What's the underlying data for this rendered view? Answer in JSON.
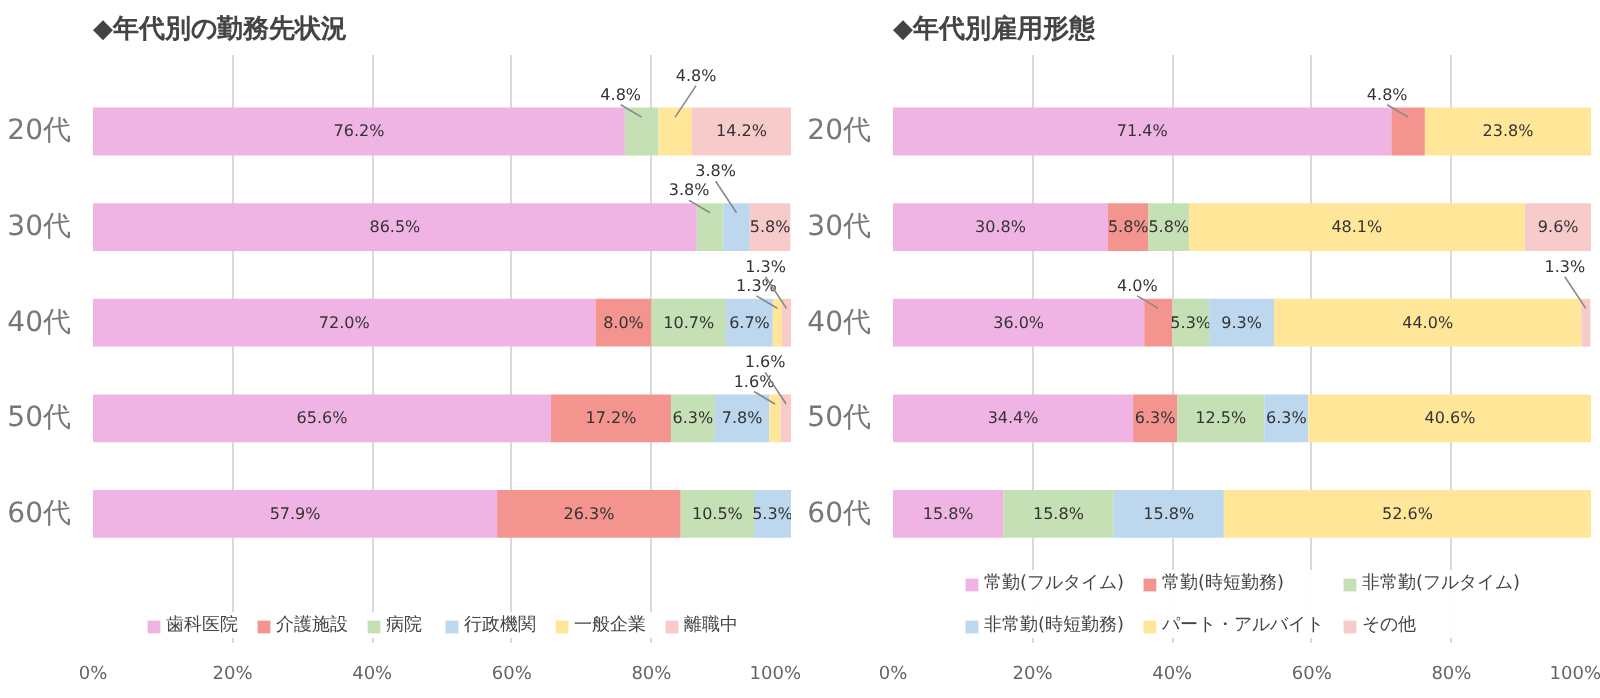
{
  "chart_data": [
    {
      "type": "bar",
      "orientation": "horizontal",
      "stacked": true,
      "title": "◆年代別の勤務先状況",
      "categories": [
        "20代",
        "30代",
        "40代",
        "50代",
        "60代"
      ],
      "xlim": [
        0,
        100
      ],
      "xticks": [
        {
          "value": 0,
          "label": "0%"
        },
        {
          "value": 20,
          "label": "20%"
        },
        {
          "value": 40,
          "label": "40%"
        },
        {
          "value": 60,
          "label": "60%"
        },
        {
          "value": 80,
          "label": "80%"
        },
        {
          "value": 100,
          "label": "100%"
        }
      ],
      "grid": "x",
      "legend": "bottom",
      "series": [
        {
          "name": "歯科医院",
          "color": "#f0b4e4",
          "values": [
            76.2,
            86.5,
            72.0,
            65.6,
            57.9
          ],
          "value_labels": [
            "76.2%",
            "86.5%",
            "72.0%",
            "65.6%",
            "57.9%"
          ]
        },
        {
          "name": "介護施設",
          "color": "#f4948f",
          "values": [
            0,
            0,
            8.0,
            17.2,
            26.3
          ],
          "value_labels": [
            null,
            null,
            "8.0%",
            "17.2%",
            "26.3%"
          ]
        },
        {
          "name": "病院",
          "color": "#c5e0b4",
          "values": [
            4.8,
            3.8,
            10.7,
            6.3,
            10.5
          ],
          "value_labels": [
            "4.8%",
            "3.8%",
            "10.7%",
            "6.3%",
            "10.5%"
          ]
        },
        {
          "name": "行政機関",
          "color": "#bdd7ee",
          "values": [
            0,
            3.8,
            6.7,
            7.8,
            5.3
          ],
          "value_labels": [
            null,
            "3.8%",
            "6.7%",
            "7.8%",
            "5.3%"
          ]
        },
        {
          "name": "一般企業",
          "color": "#ffe699",
          "values": [
            4.8,
            0,
            1.3,
            1.6,
            0
          ],
          "value_labels": [
            "4.8%",
            null,
            "1.3%",
            "1.6%",
            null
          ]
        },
        {
          "name": "離職中",
          "color": "#f8cbcb",
          "values": [
            14.2,
            5.8,
            1.3,
            1.6,
            0
          ],
          "value_labels": [
            "14.2%",
            "5.8%",
            "1.3%",
            "1.6%",
            null
          ]
        }
      ]
    },
    {
      "type": "bar",
      "orientation": "horizontal",
      "stacked": true,
      "title": "◆年代別雇用形態",
      "categories": [
        "20代",
        "30代",
        "40代",
        "50代",
        "60代"
      ],
      "xlim": [
        0,
        100
      ],
      "xticks": [
        {
          "value": 0,
          "label": "0%"
        },
        {
          "value": 20,
          "label": "20%"
        },
        {
          "value": 40,
          "label": "40%"
        },
        {
          "value": 60,
          "label": "60%"
        },
        {
          "value": 80,
          "label": "80%"
        },
        {
          "value": 100,
          "label": "100%"
        }
      ],
      "grid": "x",
      "legend": "bottom",
      "series": [
        {
          "name": "常勤(フルタイム)",
          "color": "#f0b4e4",
          "values": [
            71.4,
            30.8,
            36.0,
            34.4,
            15.8
          ],
          "value_labels": [
            "71.4%",
            "30.8%",
            "36.0%",
            "34.4%",
            "15.8%"
          ]
        },
        {
          "name": "常勤(時短勤務)",
          "color": "#f4948f",
          "values": [
            4.8,
            5.8,
            4.0,
            6.3,
            0
          ],
          "value_labels": [
            "4.8%",
            "5.8%",
            "4.0%",
            "6.3%",
            null
          ]
        },
        {
          "name": "非常勤(フルタイム)",
          "color": "#c5e0b4",
          "values": [
            0,
            5.8,
            5.3,
            12.5,
            15.8
          ],
          "value_labels": [
            null,
            "5.8%",
            "5.3%",
            "12.5%",
            "15.8%"
          ]
        },
        {
          "name": "非常勤(時短勤務)",
          "color": "#bdd7ee",
          "values": [
            0,
            0,
            9.3,
            6.3,
            15.8
          ],
          "value_labels": [
            null,
            null,
            "9.3%",
            "6.3%",
            "15.8%"
          ]
        },
        {
          "name": "パート・アルバイト",
          "color": "#ffe699",
          "values": [
            23.8,
            48.1,
            44.0,
            40.6,
            52.6
          ],
          "value_labels": [
            "23.8%",
            "48.1%",
            "44.0%",
            "40.6%",
            "52.6%"
          ]
        },
        {
          "name": "その他",
          "color": "#f8cbcb",
          "values": [
            0,
            9.6,
            1.3,
            0,
            0
          ],
          "value_labels": [
            null,
            "9.6%",
            "1.3%",
            null,
            null
          ]
        }
      ]
    }
  ]
}
